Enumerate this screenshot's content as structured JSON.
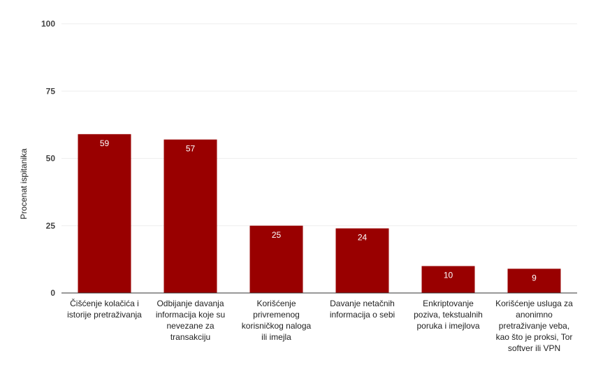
{
  "chart_data": {
    "type": "bar",
    "title": "",
    "xlabel": "",
    "ylabel": "Procenat ispitanika",
    "ylim": [
      0,
      100
    ],
    "yticks": [
      0,
      25,
      50,
      75,
      100
    ],
    "grid": true,
    "categories": [
      [
        "Čišćenje kolačića i",
        "istorije pretraživanja"
      ],
      [
        "Odbijanje davanja",
        "informacija koje su",
        "nevezane za",
        "transakciju"
      ],
      [
        "Korišćenje",
        "privremenog",
        "korisničkog naloga",
        "ili imejla"
      ],
      [
        "Davanje netačnih",
        "informacija o sebi"
      ],
      [
        "Enkriptovanje",
        "poziva, tekstualnih",
        "poruka i imejlova"
      ],
      [
        "Korišćenje usluga za",
        "anonimno",
        "pretraživanje veba,",
        "kao što je proksi, Tor",
        "softver ili VPN"
      ]
    ],
    "values": [
      59,
      57,
      25,
      24,
      10,
      9
    ],
    "data_labels": [
      "59",
      "57",
      "25",
      "24",
      "10",
      "9"
    ],
    "colors": {
      "bar": "#990000",
      "bar_label": "#ffffff",
      "grid": "#eeeeee",
      "axis": "#333333",
      "tick_text": "#444444",
      "category_text": "#222222"
    }
  }
}
